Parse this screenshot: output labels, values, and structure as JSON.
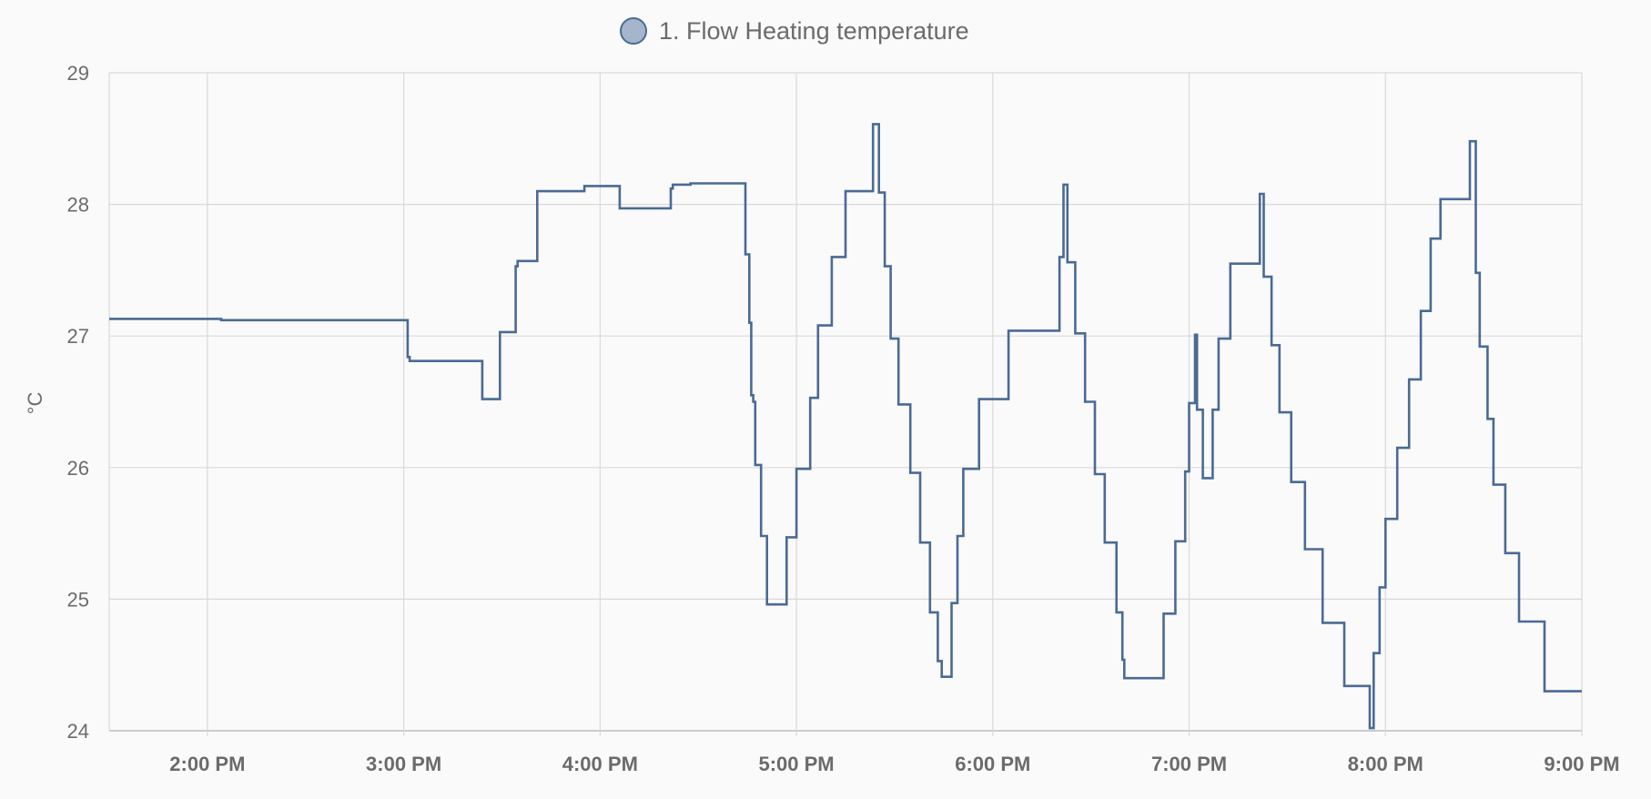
{
  "chart_data": {
    "type": "line",
    "step": true,
    "title": "",
    "xlabel": "",
    "ylabel": "°C",
    "ylim": [
      24,
      29
    ],
    "yticks": [
      "24",
      "25",
      "26",
      "27",
      "28",
      "29"
    ],
    "xlim": [
      13.5,
      21.0
    ],
    "xticks": [
      {
        "value": 14,
        "label": "2:00 PM"
      },
      {
        "value": 15,
        "label": "3:00 PM"
      },
      {
        "value": 16,
        "label": "4:00 PM"
      },
      {
        "value": 17,
        "label": "5:00 PM"
      },
      {
        "value": 18,
        "label": "6:00 PM"
      },
      {
        "value": 19,
        "label": "7:00 PM"
      },
      {
        "value": 20,
        "label": "8:00 PM"
      },
      {
        "value": 21,
        "label": "9:00 PM"
      }
    ],
    "grid": true,
    "legend_position": "top-center",
    "series": [
      {
        "name": "1. Flow Heating temperature",
        "color": "#4a6a94",
        "fill": "#a5b6cc",
        "x": [
          13.5,
          14.06,
          14.07,
          15.02,
          15.03,
          15.4,
          15.49,
          15.57,
          15.58,
          15.68,
          15.92,
          16.1,
          16.36,
          16.37,
          16.46,
          16.74,
          16.76,
          16.77,
          16.78,
          16.79,
          16.82,
          16.85,
          16.95,
          17.0,
          17.07,
          17.11,
          17.18,
          17.25,
          17.38,
          17.39,
          17.42,
          17.45,
          17.48,
          17.52,
          17.58,
          17.63,
          17.68,
          17.72,
          17.74,
          17.79,
          17.82,
          17.85,
          17.93,
          18.08,
          18.34,
          18.36,
          18.38,
          18.42,
          18.47,
          18.52,
          18.57,
          18.63,
          18.66,
          18.67,
          18.87,
          18.93,
          18.98,
          19.0,
          19.03,
          19.04,
          19.07,
          19.12,
          19.15,
          19.21,
          19.36,
          19.38,
          19.42,
          19.46,
          19.52,
          19.59,
          19.68,
          19.79,
          19.92,
          19.94,
          19.97,
          20.0,
          20.06,
          20.12,
          20.18,
          20.23,
          20.28,
          20.43,
          20.46,
          20.48,
          20.52,
          20.55,
          20.61,
          20.68,
          20.81,
          21.0
        ],
        "y": [
          27.13,
          27.13,
          27.12,
          26.84,
          26.81,
          26.52,
          27.03,
          27.53,
          27.57,
          28.1,
          28.14,
          27.97,
          28.12,
          28.15,
          28.16,
          27.62,
          27.1,
          26.55,
          26.5,
          26.02,
          25.48,
          24.96,
          25.47,
          25.99,
          26.53,
          27.08,
          27.6,
          28.1,
          28.1,
          28.61,
          28.09,
          27.53,
          26.98,
          26.48,
          25.96,
          25.43,
          24.9,
          24.53,
          24.41,
          24.97,
          25.48,
          25.99,
          26.52,
          27.04,
          27.6,
          28.15,
          27.56,
          27.02,
          26.5,
          25.95,
          25.43,
          24.9,
          24.54,
          24.4,
          24.89,
          25.44,
          25.97,
          26.49,
          27.01,
          26.44,
          25.92,
          26.44,
          26.98,
          27.55,
          28.08,
          27.45,
          26.93,
          26.42,
          25.89,
          25.38,
          24.82,
          24.34,
          24.02,
          24.59,
          25.09,
          25.61,
          26.15,
          26.67,
          27.19,
          27.74,
          28.04,
          28.48,
          27.48,
          26.92,
          26.37,
          25.87,
          25.35,
          24.83,
          24.3,
          24.3
        ]
      }
    ]
  }
}
